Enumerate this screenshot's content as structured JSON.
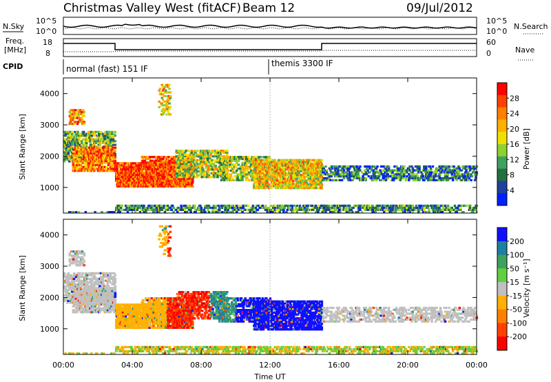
{
  "header": {
    "title": "Christmas Valley West (fitACF)",
    "beam": "Beam 12",
    "date": "09/Jul/2012"
  },
  "noise_panel": {
    "left_label": "N.Sky",
    "right_label": "N.Search",
    "left_ticks": [
      "10^5",
      "10^0"
    ],
    "right_ticks": [
      "10^5",
      "10^0"
    ]
  },
  "freq_panel": {
    "left_label_1": "Freq.",
    "left_label_2": "[MHz]",
    "right_label": "Nave",
    "left_ticks": [
      "18",
      "8"
    ],
    "right_ticks": [
      "60",
      "0"
    ]
  },
  "cpid": {
    "label": "CPID",
    "segments": [
      "normal (fast) 151 IF",
      "themis 3300 IF"
    ]
  },
  "x_axis": {
    "label": "Time UT",
    "ticks": [
      "00:00",
      "04:00",
      "08:00",
      "12:00",
      "16:00",
      "20:00",
      "00:00"
    ]
  },
  "chart_data": [
    {
      "type": "heatmap",
      "quantity": "Power",
      "ylabel": "Slant Range [km]",
      "yticks": [
        "1000",
        "2000",
        "3000",
        "4000"
      ],
      "colorbar_label": "Power [dB]",
      "colorbar_ticks": [
        "28",
        "24",
        "20",
        "16",
        "12",
        "8",
        "4"
      ],
      "colorbar_colors": [
        "#ff0000",
        "#ff4000",
        "#ff8000",
        "#ffb000",
        "#f0e000",
        "#90d030",
        "#40a060",
        "#207040",
        "#2040a0",
        "#0020ff"
      ]
    },
    {
      "type": "heatmap",
      "quantity": "Velocity",
      "ylabel": "Slant Range [km]",
      "yticks": [
        "1000",
        "2000",
        "3000",
        "4000"
      ],
      "colorbar_label": "Velocity [m s⁻¹]",
      "colorbar_ticks": [
        "200",
        "100",
        "50",
        "15",
        "-15",
        "-50",
        "-100",
        "-200"
      ],
      "colorbar_colors": [
        "#1010ff",
        "#2080a0",
        "#40a060",
        "#60d040",
        "#c0c0c0",
        "#ffb000",
        "#ff8000",
        "#ff4000",
        "#ff0000"
      ]
    }
  ]
}
